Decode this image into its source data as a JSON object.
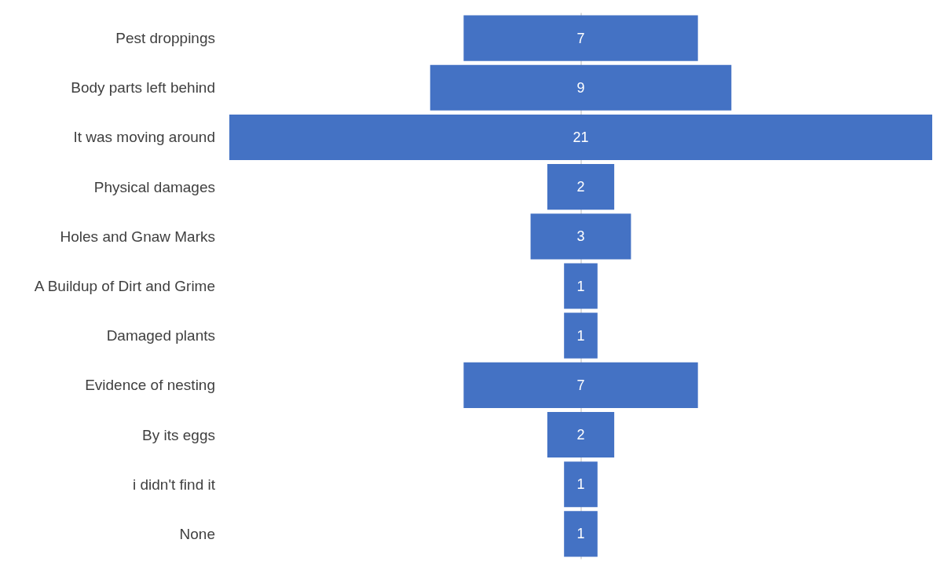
{
  "chart_data": {
    "type": "other",
    "categories": [
      "Pest droppings",
      "Body parts left behind",
      "It was moving around",
      "Physical damages",
      "Holes and Gnaw Marks",
      "A Buildup of Dirt and Grime",
      "Damaged plants",
      "Evidence of nesting",
      "By its eggs",
      "i didn't find it",
      "None"
    ],
    "values": [
      7,
      9,
      21,
      2,
      3,
      1,
      1,
      7,
      2,
      1,
      1
    ],
    "color": "#4472c4",
    "data_labels": true
  }
}
